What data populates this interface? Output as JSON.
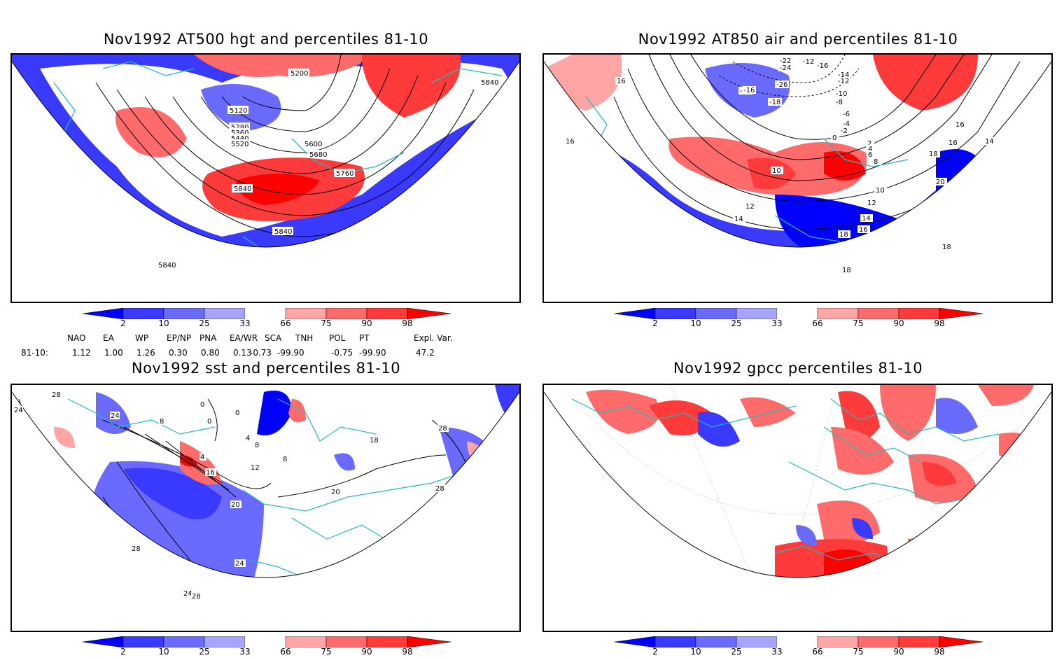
{
  "panels": {
    "p1": {
      "title": "Nov1992 AT500 hgt and percentiles 81-10",
      "contour_labels": [
        "5200",
        "5120",
        "5280",
        "5360",
        "5440",
        "5520",
        "5600",
        "5680",
        "5760",
        "5840",
        "5840",
        "5840",
        "5840"
      ]
    },
    "p2": {
      "title": "Nov1992 AT850 air and percentiles 81-10",
      "contour_labels": [
        "-22",
        "-24",
        "-26",
        "-18",
        "-16",
        "-12",
        "-16",
        "-14",
        "-12",
        "-10",
        "-8",
        "-6",
        "-4",
        "-2",
        "0",
        "2",
        "4",
        "6",
        "8",
        "10",
        "10",
        "12",
        "12",
        "14",
        "14",
        "16",
        "16",
        "16",
        "16",
        "18",
        "18",
        "18",
        "18",
        "20",
        "14",
        "-16",
        "16"
      ]
    },
    "p3": {
      "title": "Nov1992 sst and percentiles 81-10",
      "contour_labels": [
        "24",
        "28",
        "24",
        "8",
        "0",
        "0",
        "0",
        "4",
        "8",
        "12",
        "4",
        "16",
        "20",
        "20",
        "18",
        "28",
        "28",
        "28",
        "24",
        "24",
        "28",
        "8"
      ]
    },
    "p4": {
      "title": "Nov1992 gpcc percentiles 81-10"
    }
  },
  "colorbar": {
    "labels": [
      "2",
      "10",
      "25",
      "33",
      "66",
      "75",
      "90",
      "98"
    ],
    "colors": [
      "#0000ff",
      "#3a3aff",
      "#6a6aff",
      "#a5a5ff",
      "#ffffff",
      "#ffa5a5",
      "#ff6a6a",
      "#ff3a3a",
      "#ff0000"
    ]
  },
  "indices": {
    "header": [
      "NAO",
      "EA",
      "WP",
      "EP/NP",
      "PNA",
      "EA/WR",
      "SCA",
      "TNH",
      "POL",
      "PT",
      "Expl. Var."
    ],
    "row_label": "81-10:",
    "values": [
      "1.12",
      "1.00",
      "1.26",
      "0.30",
      "0.80",
      "0.13",
      "-0.73",
      "-99.90",
      "-0.75",
      "-99.90",
      "47.2"
    ]
  },
  "legend_colors": {
    "below": "#0000ff",
    "low": "#6a6aff",
    "high": "#ff6a6a",
    "above": "#ff0000",
    "coast": "#22bbbb"
  }
}
